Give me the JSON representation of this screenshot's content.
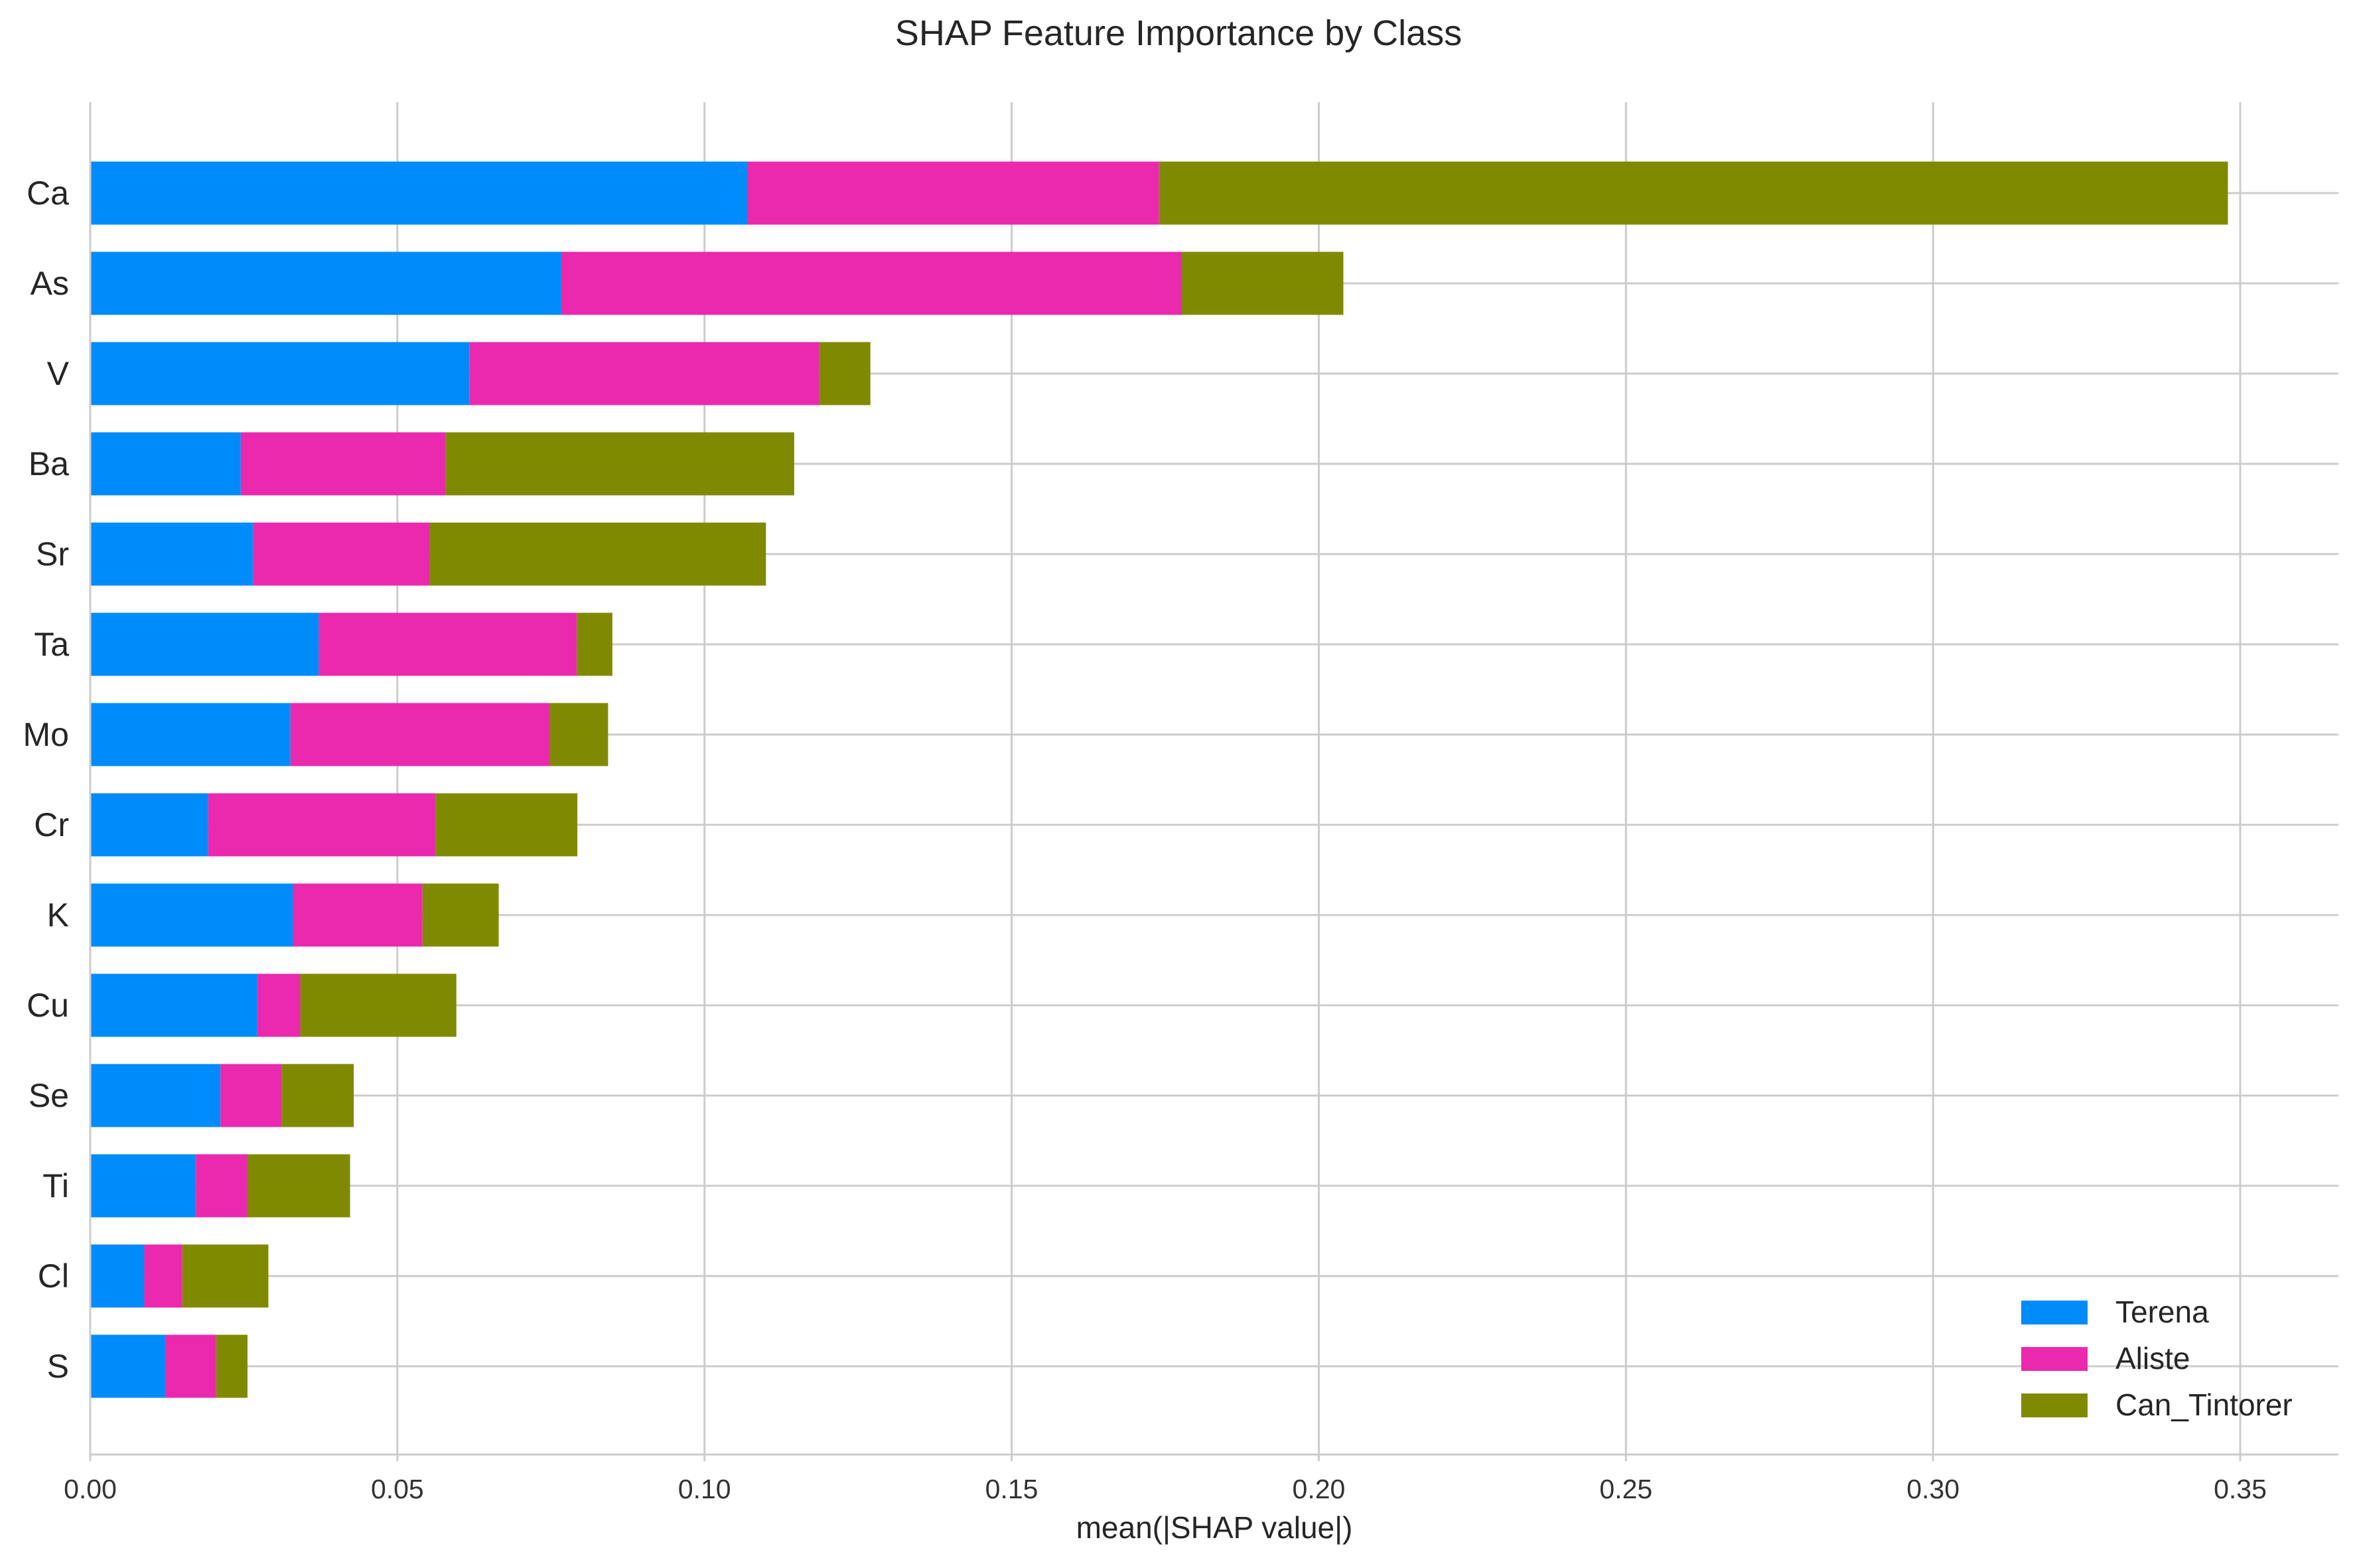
{
  "chart_data": {
    "type": "bar",
    "orientation": "horizontal",
    "stacked": true,
    "title": "SHAP Feature Importance by Class",
    "xlabel": "mean(|SHAP value|)",
    "ylabel": "",
    "xlim": [
      0,
      0.366
    ],
    "xticks": [
      0.0,
      0.05,
      0.1,
      0.15,
      0.2,
      0.25,
      0.3,
      0.35
    ],
    "xtick_labels": [
      "0.00",
      "0.05",
      "0.10",
      "0.15",
      "0.20",
      "0.25",
      "0.30",
      "0.35"
    ],
    "grid": true,
    "legend_position": "lower-right",
    "categories": [
      "Ca",
      "As",
      "V",
      "Ba",
      "Sr",
      "Ta",
      "Mo",
      "Cr",
      "K",
      "Cu",
      "Se",
      "Ti",
      "Cl",
      "S"
    ],
    "series": [
      {
        "name": "Terena",
        "color": "#008bfb",
        "values": [
          0.107,
          0.0767,
          0.0617,
          0.0245,
          0.0265,
          0.0372,
          0.0326,
          0.0192,
          0.033,
          0.0272,
          0.0212,
          0.0172,
          0.0088,
          0.0122
        ]
      },
      {
        "name": "Aliste",
        "color": "#ea29ae",
        "values": [
          0.067,
          0.101,
          0.057,
          0.0333,
          0.0288,
          0.042,
          0.0422,
          0.037,
          0.0211,
          0.007,
          0.01,
          0.0084,
          0.0062,
          0.0083
        ]
      },
      {
        "name": "Can_Tintorer",
        "color": "#808a00",
        "values": [
          0.174,
          0.0263,
          0.0083,
          0.0568,
          0.0547,
          0.0058,
          0.0095,
          0.0231,
          0.0124,
          0.0254,
          0.0117,
          0.0167,
          0.014,
          0.0051
        ]
      }
    ]
  }
}
